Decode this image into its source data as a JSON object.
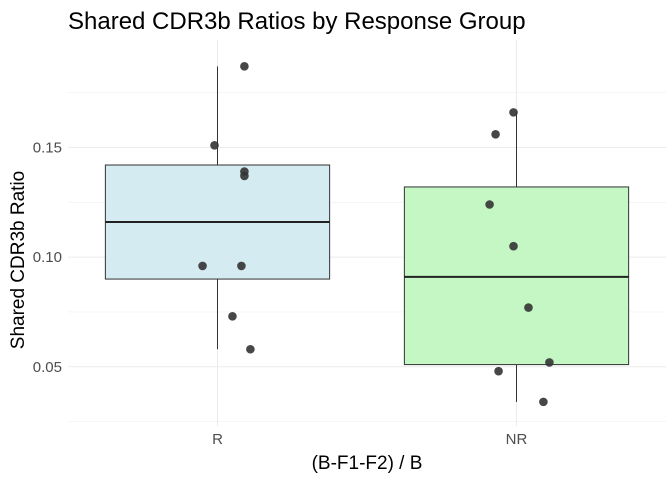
{
  "chart_data": {
    "type": "boxplot",
    "title": "Shared CDR3b Ratios by Response Group",
    "xlabel": "(B-F1-F2) / B",
    "ylabel": "Shared CDR3b Ratio",
    "categories": [
      "R",
      "NR"
    ],
    "ylim": [
      0.023,
      0.199
    ],
    "y_ticks": [
      0.05,
      0.1,
      0.15
    ],
    "y_tick_labels": [
      "0.05",
      "0.10",
      "0.15"
    ],
    "grid": true,
    "legend": "none",
    "boxes": [
      {
        "category": "R",
        "fill": "#d5ebf2",
        "whisker_low": 0.058,
        "q1": 0.09,
        "median": 0.116,
        "q3": 0.142,
        "whisker_high": 0.187
      },
      {
        "category": "NR",
        "fill": "#c5f7c5",
        "whisker_low": 0.034,
        "q1": 0.051,
        "median": 0.091,
        "q3": 0.132,
        "whisker_high": 0.166
      }
    ],
    "points": [
      {
        "category": "R",
        "jitter": 0.09,
        "y": 0.187
      },
      {
        "category": "R",
        "jitter": -0.01,
        "y": 0.151
      },
      {
        "category": "R",
        "jitter": 0.09,
        "y": 0.139
      },
      {
        "category": "R",
        "jitter": 0.09,
        "y": 0.137
      },
      {
        "category": "R",
        "jitter": -0.05,
        "y": 0.096
      },
      {
        "category": "R",
        "jitter": 0.08,
        "y": 0.096
      },
      {
        "category": "R",
        "jitter": 0.05,
        "y": 0.073
      },
      {
        "category": "R",
        "jitter": 0.11,
        "y": 0.058
      },
      {
        "category": "NR",
        "jitter": -0.07,
        "y": 0.156
      },
      {
        "category": "NR",
        "jitter": -0.01,
        "y": 0.166
      },
      {
        "category": "NR",
        "jitter": -0.09,
        "y": 0.124
      },
      {
        "category": "NR",
        "jitter": -0.01,
        "y": 0.105
      },
      {
        "category": "NR",
        "jitter": 0.04,
        "y": 0.077
      },
      {
        "category": "NR",
        "jitter": 0.11,
        "y": 0.052
      },
      {
        "category": "NR",
        "jitter": -0.06,
        "y": 0.048
      },
      {
        "category": "NR",
        "jitter": 0.09,
        "y": 0.034
      }
    ]
  }
}
